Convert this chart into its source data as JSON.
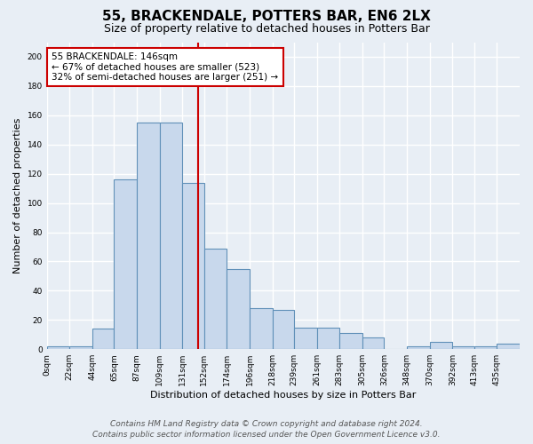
{
  "title": "55, BRACKENDALE, POTTERS BAR, EN6 2LX",
  "subtitle": "Size of property relative to detached houses in Potters Bar",
  "xlabel": "Distribution of detached houses by size in Potters Bar",
  "ylabel": "Number of detached properties",
  "bar_values": [
    2,
    2,
    14,
    116,
    155,
    155,
    114,
    69,
    55,
    28,
    27,
    15,
    15,
    11,
    8,
    0,
    2,
    5,
    2,
    2,
    4
  ],
  "bin_edges": [
    0,
    22,
    44,
    65,
    87,
    109,
    131,
    152,
    174,
    196,
    218,
    239,
    261,
    283,
    305,
    326,
    348,
    370,
    392,
    413,
    435,
    457
  ],
  "tick_labels": [
    "0sqm",
    "22sqm",
    "44sqm",
    "65sqm",
    "87sqm",
    "109sqm",
    "131sqm",
    "152sqm",
    "174sqm",
    "196sqm",
    "218sqm",
    "239sqm",
    "261sqm",
    "283sqm",
    "305sqm",
    "326sqm",
    "348sqm",
    "370sqm",
    "392sqm",
    "413sqm",
    "435sqm"
  ],
  "bar_color": "#c8d8ec",
  "bar_edge_color": "#6090b8",
  "vline_x": 146,
  "vline_color": "#cc0000",
  "annotation_text": "55 BRACKENDALE: 146sqm\n← 67% of detached houses are smaller (523)\n32% of semi-detached houses are larger (251) →",
  "annotation_box_color": "#ffffff",
  "annotation_box_edge": "#cc0000",
  "ylim": [
    0,
    210
  ],
  "yticks": [
    0,
    20,
    40,
    60,
    80,
    100,
    120,
    140,
    160,
    180,
    200
  ],
  "footer_line1": "Contains HM Land Registry data © Crown copyright and database right 2024.",
  "footer_line2": "Contains public sector information licensed under the Open Government Licence v3.0.",
  "bg_color": "#e8eef5",
  "grid_color": "#ffffff",
  "title_fontsize": 11,
  "subtitle_fontsize": 9,
  "ylabel_fontsize": 8,
  "xlabel_fontsize": 8,
  "tick_fontsize": 6.5,
  "annot_fontsize": 7.5,
  "footer_fontsize": 6.5
}
